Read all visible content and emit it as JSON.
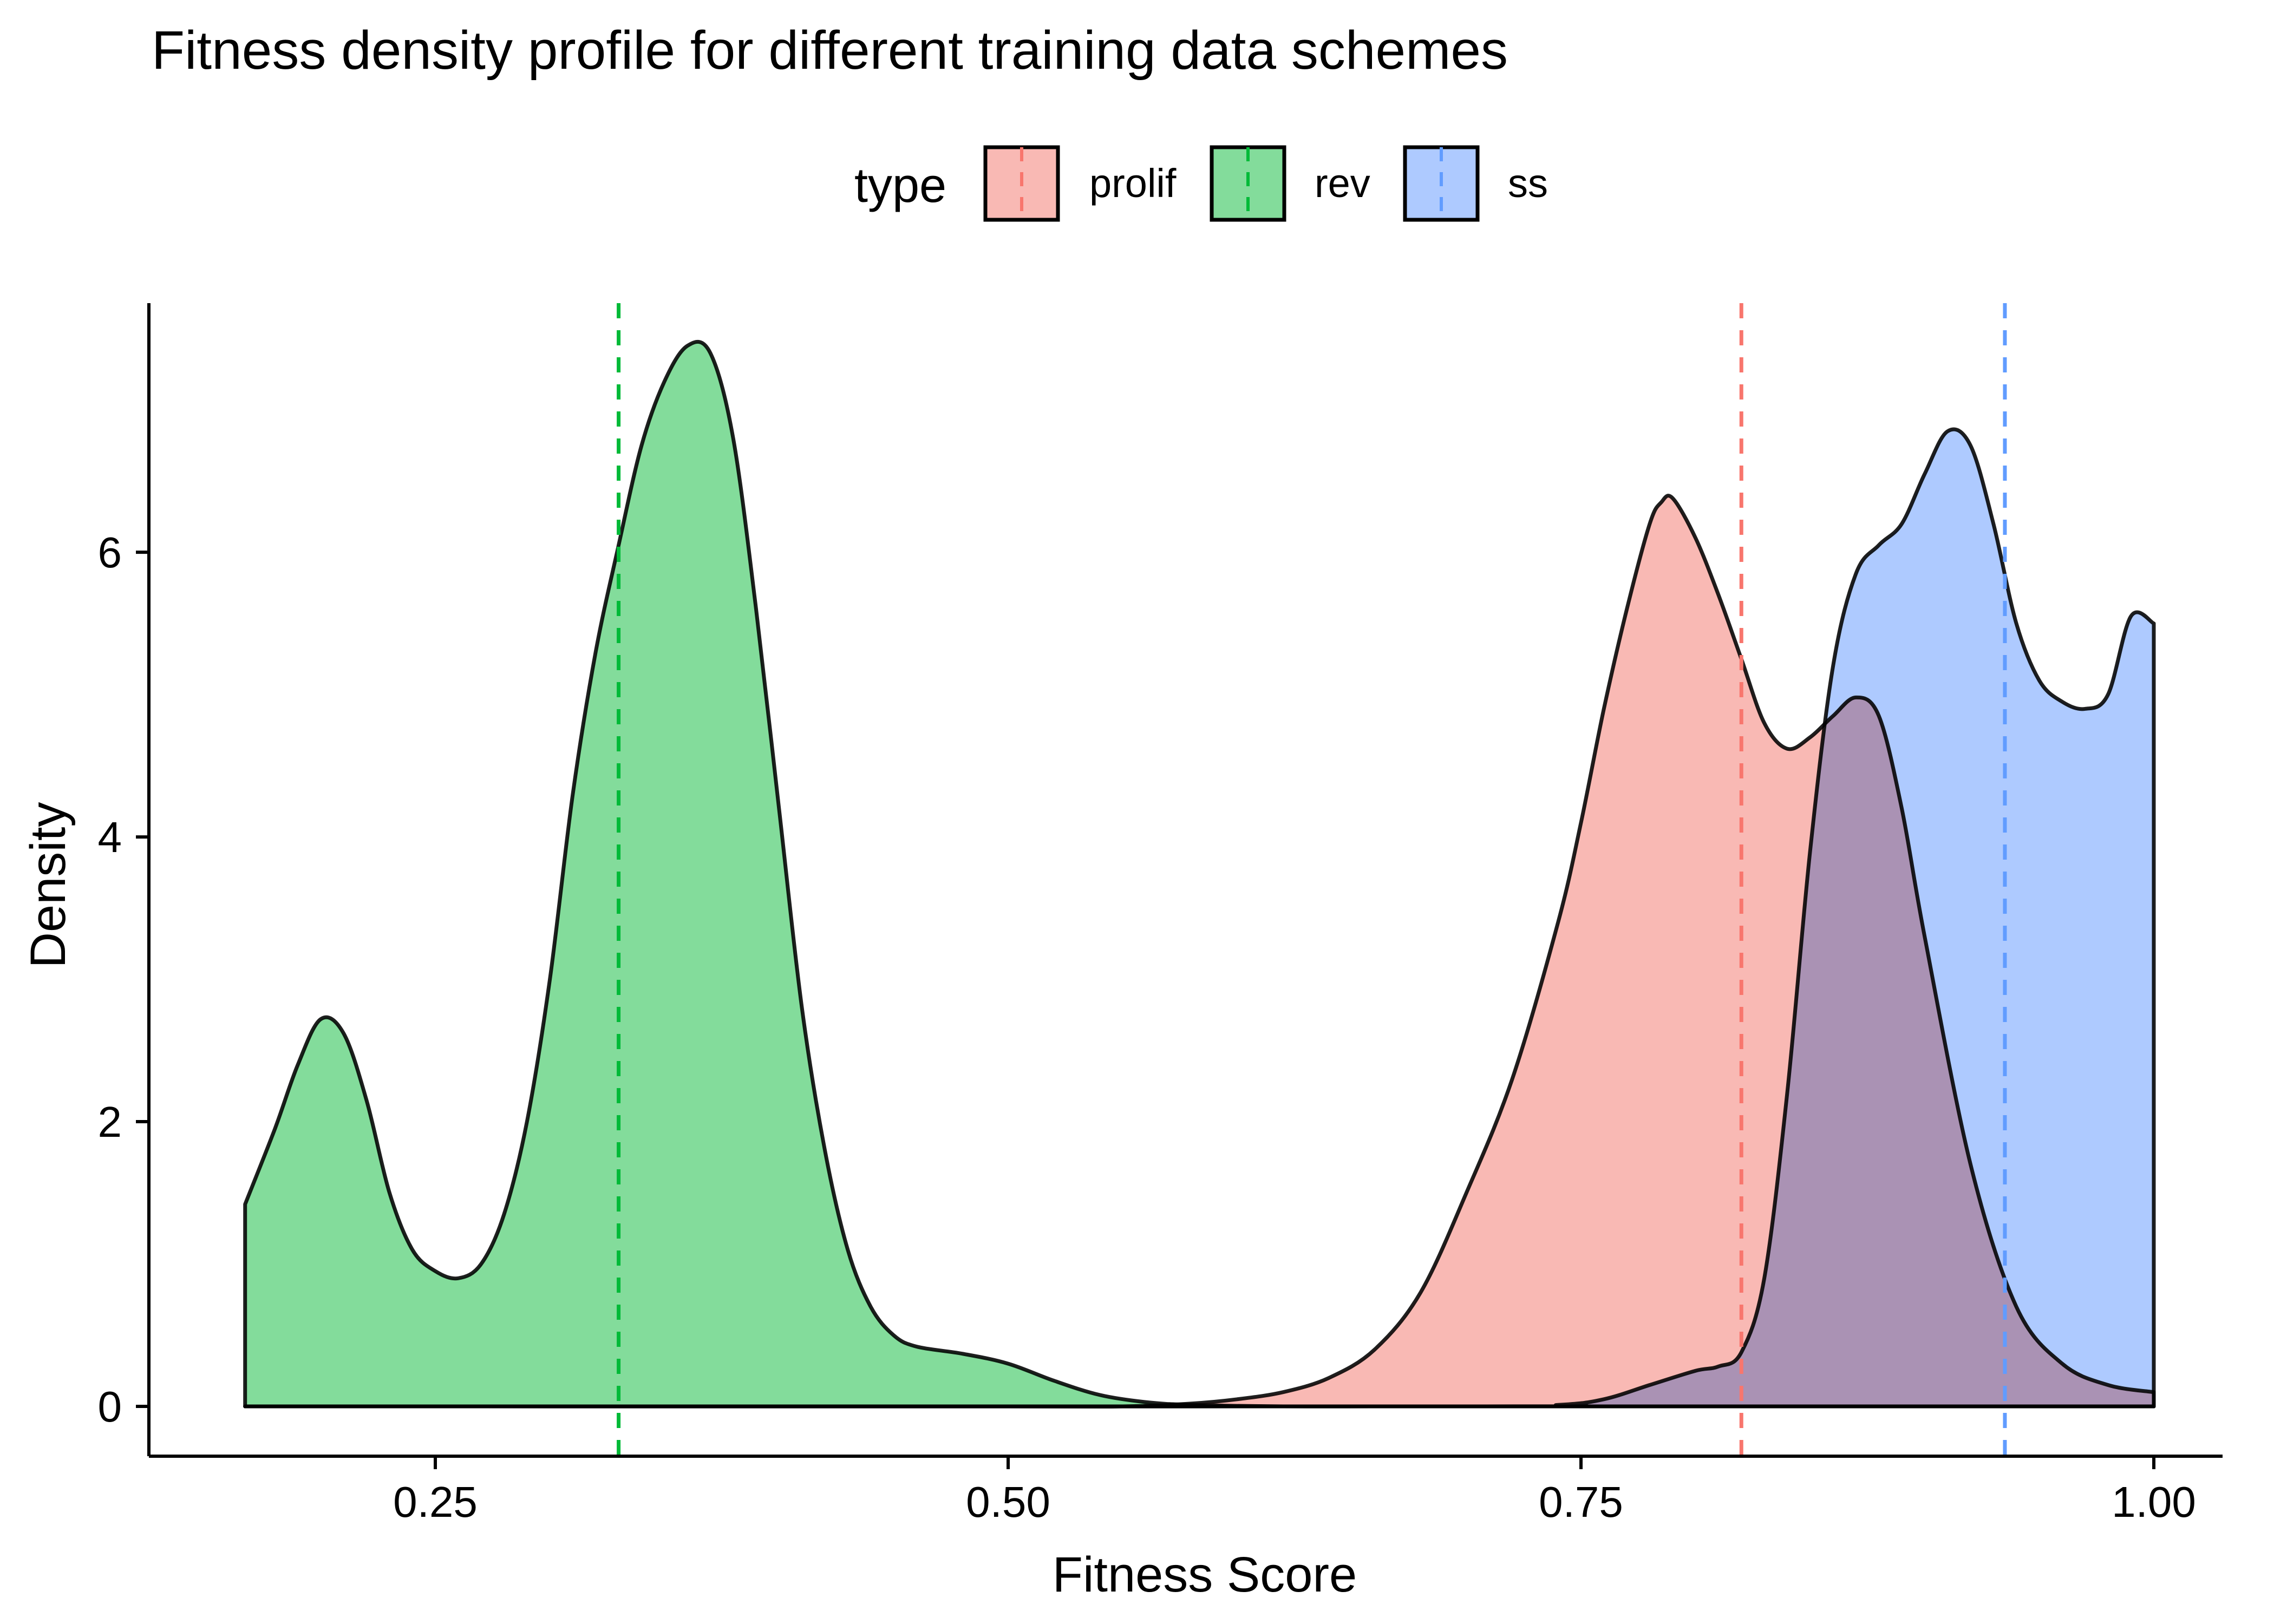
{
  "chart_data": {
    "type": "area",
    "title": "Fitness density profile for different training data schemes",
    "xlabel": "Fitness Score",
    "ylabel": "Density",
    "xlim": [
      0.125,
      1.03
    ],
    "ylim": [
      -0.35,
      7.75
    ],
    "xticks": [
      0.25,
      0.5,
      0.75,
      1.0
    ],
    "xtick_labels": [
      "0.25",
      "0.50",
      "0.75",
      "1.00"
    ],
    "yticks": [
      0,
      2,
      4,
      6
    ],
    "ytick_labels": [
      "0",
      "2",
      "4",
      "6"
    ],
    "grid": false,
    "legend": {
      "title": "type",
      "placement": "top",
      "entries": [
        "prolif",
        "rev",
        "ss"
      ]
    },
    "series": [
      {
        "name": "rev",
        "color": "#00BA38",
        "fill": "#83DC9B",
        "mean_line": 0.33,
        "x": [
          0.167,
          0.18,
          0.19,
          0.2,
          0.21,
          0.22,
          0.23,
          0.24,
          0.25,
          0.26,
          0.27,
          0.28,
          0.29,
          0.3,
          0.31,
          0.32,
          0.33,
          0.34,
          0.35,
          0.36,
          0.37,
          0.38,
          0.39,
          0.4,
          0.41,
          0.42,
          0.43,
          0.44,
          0.45,
          0.46,
          0.48,
          0.5,
          0.52,
          0.54,
          0.56,
          0.58,
          0.62,
          0.66,
          0.7,
          0.75,
          0.8,
          0.85,
          0.9,
          0.95,
          1.0
        ],
        "y": [
          1.42,
          1.95,
          2.4,
          2.72,
          2.62,
          2.15,
          1.5,
          1.1,
          0.95,
          0.9,
          1.0,
          1.35,
          2.0,
          3.0,
          4.3,
          5.3,
          6.05,
          6.75,
          7.2,
          7.45,
          7.4,
          6.8,
          5.6,
          4.2,
          2.8,
          1.8,
          1.1,
          0.7,
          0.5,
          0.42,
          0.37,
          0.3,
          0.18,
          0.08,
          0.03,
          0.01,
          0.0,
          0.0,
          0.0,
          0.0,
          0.0,
          0.0,
          0.0,
          0.0,
          0.0
        ]
      },
      {
        "name": "prolif",
        "color": "#F8766D",
        "fill": "#F9B9B4",
        "mean_line": 0.82,
        "x": [
          0.167,
          0.5,
          0.55,
          0.58,
          0.6,
          0.62,
          0.64,
          0.66,
          0.68,
          0.7,
          0.72,
          0.74,
          0.75,
          0.76,
          0.77,
          0.78,
          0.785,
          0.79,
          0.8,
          0.81,
          0.82,
          0.83,
          0.84,
          0.85,
          0.86,
          0.87,
          0.88,
          0.89,
          0.9,
          0.92,
          0.94,
          0.96,
          0.98,
          1.0
        ],
        "y": [
          0.0,
          0.0,
          0.0,
          0.02,
          0.05,
          0.1,
          0.2,
          0.4,
          0.8,
          1.5,
          2.3,
          3.4,
          4.1,
          4.9,
          5.6,
          6.2,
          6.35,
          6.38,
          6.1,
          5.7,
          5.25,
          4.8,
          4.62,
          4.7,
          4.85,
          4.98,
          4.85,
          4.2,
          3.3,
          1.7,
          0.7,
          0.3,
          0.15,
          0.1
        ]
      },
      {
        "name": "ss",
        "color": "#619CFF",
        "fill": "#AECAFF",
        "mean_line": 0.935,
        "x": [
          0.167,
          0.7,
          0.74,
          0.76,
          0.78,
          0.8,
          0.81,
          0.82,
          0.83,
          0.84,
          0.85,
          0.86,
          0.87,
          0.88,
          0.89,
          0.9,
          0.91,
          0.92,
          0.93,
          0.94,
          0.95,
          0.96,
          0.97,
          0.98,
          0.99,
          1.0
        ],
        "y": [
          0.0,
          0.0,
          0.01,
          0.05,
          0.15,
          0.25,
          0.28,
          0.38,
          0.9,
          2.2,
          3.9,
          5.2,
          5.85,
          6.05,
          6.2,
          6.55,
          6.85,
          6.75,
          6.2,
          5.5,
          5.1,
          4.95,
          4.9,
          5.0,
          5.55,
          5.5
        ]
      }
    ]
  }
}
